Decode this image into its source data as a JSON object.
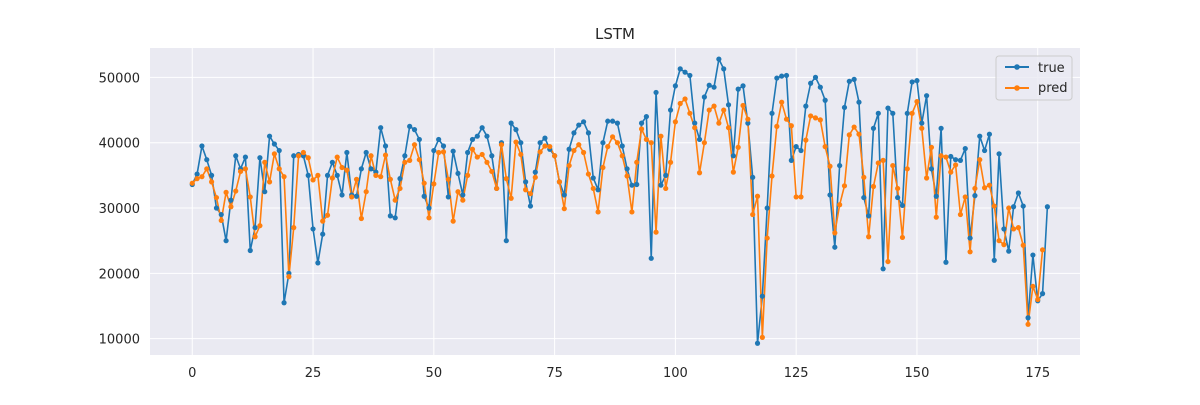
{
  "chart_data": {
    "type": "line",
    "title": "LSTM",
    "xlabel": "",
    "ylabel": "",
    "xlim": [
      -8.75,
      183.75
    ],
    "ylim": [
      7500,
      54500
    ],
    "xticks": [
      0,
      25,
      50,
      75,
      100,
      125,
      150,
      175
    ],
    "yticks": [
      10000,
      20000,
      30000,
      40000,
      50000
    ],
    "xtick_labels": [
      "0",
      "25",
      "50",
      "75",
      "100",
      "125",
      "150",
      "175"
    ],
    "ytick_labels": [
      "10000",
      "20000",
      "30000",
      "40000",
      "50000"
    ],
    "grid": true,
    "legend_position": "top-right",
    "series": [
      {
        "name": "true",
        "color": "#1f77b4",
        "values": [
          33600,
          35200,
          39500,
          37400,
          35000,
          30000,
          29000,
          25000,
          31200,
          38000,
          36000,
          37800,
          23500,
          27000,
          37700,
          32500,
          41000,
          39800,
          38800,
          15500,
          20000,
          38000,
          38200,
          38000,
          35000,
          26800,
          21600,
          26000,
          35000,
          37000,
          35000,
          32000,
          38500,
          32000,
          31800,
          36000,
          38500,
          36000,
          35500,
          42300,
          39500,
          28800,
          28500,
          34500,
          38000,
          42500,
          42000,
          40500,
          31800,
          30000,
          38800,
          40500,
          39500,
          31700,
          38700,
          35300,
          32000,
          38500,
          40500,
          41000,
          42300,
          41000,
          38000,
          33000,
          40000,
          25000,
          43000,
          42000,
          40000,
          34000,
          30300,
          35500,
          40000,
          40700,
          39000,
          38000,
          34000,
          32000,
          39000,
          41500,
          42700,
          43200,
          41500,
          34600,
          32800,
          40000,
          43300,
          43300,
          43000,
          39500,
          36000,
          33500,
          33600,
          43000,
          44000,
          22300,
          47700,
          33500,
          35000,
          45000,
          48700,
          51300,
          50800,
          50300,
          43000,
          40500,
          47000,
          48800,
          48500,
          52800,
          51300,
          45800,
          38000,
          48200,
          48700,
          43000,
          34700,
          9300,
          16500,
          30000,
          44500,
          49900,
          50200,
          50300,
          37300,
          39400,
          38800,
          45600,
          49100,
          50000,
          48500,
          46500,
          32000,
          24000,
          36500,
          45400,
          49400,
          49700,
          46200,
          31600,
          28800,
          42200,
          44500,
          20700,
          45300,
          44500,
          31600,
          30400,
          44500,
          49300,
          49500,
          43000,
          47200,
          36000,
          31800,
          42200,
          21700,
          37900,
          37400,
          37300,
          39100,
          25400,
          31900,
          41000,
          38800,
          41300,
          22000,
          38300,
          26800,
          23400,
          30200,
          32300,
          30300,
          13200,
          22800,
          15800,
          16900,
          30200
        ]
      },
      {
        "name": "pred",
        "color": "#ff7f0e",
        "values": [
          33800,
          34500,
          34800,
          36000,
          34000,
          31600,
          28100,
          32400,
          30200,
          32600,
          35600,
          36000,
          31700,
          25600,
          27300,
          37000,
          34000,
          38300,
          36000,
          34800,
          19500,
          27000,
          38000,
          38500,
          37700,
          34300,
          35000,
          28000,
          28900,
          34600,
          37800,
          36200,
          35800,
          31700,
          34400,
          28400,
          32500,
          38000,
          35000,
          34800,
          38100,
          34400,
          31200,
          33000,
          37000,
          37300,
          39700,
          37400,
          33800,
          28500,
          33700,
          38500,
          38600,
          34400,
          28000,
          32500,
          31200,
          35000,
          39000,
          37800,
          38200,
          37000,
          35600,
          33000,
          39700,
          34500,
          31500,
          40100,
          38200,
          32800,
          32200,
          34700,
          38600,
          39500,
          39400,
          38000,
          34000,
          29900,
          36500,
          38800,
          39700,
          38500,
          35200,
          33000,
          29400,
          36200,
          39400,
          40900,
          40000,
          38000,
          34900,
          29400,
          37000,
          42100,
          40500,
          40000,
          26300,
          41000,
          33000,
          37000,
          43200,
          46000,
          46700,
          44500,
          42300,
          35400,
          40000,
          45000,
          45600,
          43000,
          45000,
          42300,
          35500,
          39300,
          45700,
          43600,
          29000,
          31800,
          10200,
          25400,
          34900,
          42500,
          46200,
          43600,
          42600,
          31700,
          31700,
          40400,
          44100,
          43800,
          43500,
          39400,
          36400,
          26200,
          30500,
          33400,
          41200,
          42400,
          41300,
          34700,
          25600,
          33300,
          36900,
          37300,
          21800,
          36500,
          33000,
          25500,
          36000,
          44500,
          46300,
          42200,
          34600,
          39300,
          28600,
          38000,
          37800,
          35500,
          36600,
          29000,
          31700,
          23300,
          33000,
          37400,
          33100,
          33500,
          30300,
          25000,
          24400,
          30000,
          26800,
          27000,
          24300,
          12200,
          18000,
          16000,
          23600
        ]
      }
    ]
  }
}
